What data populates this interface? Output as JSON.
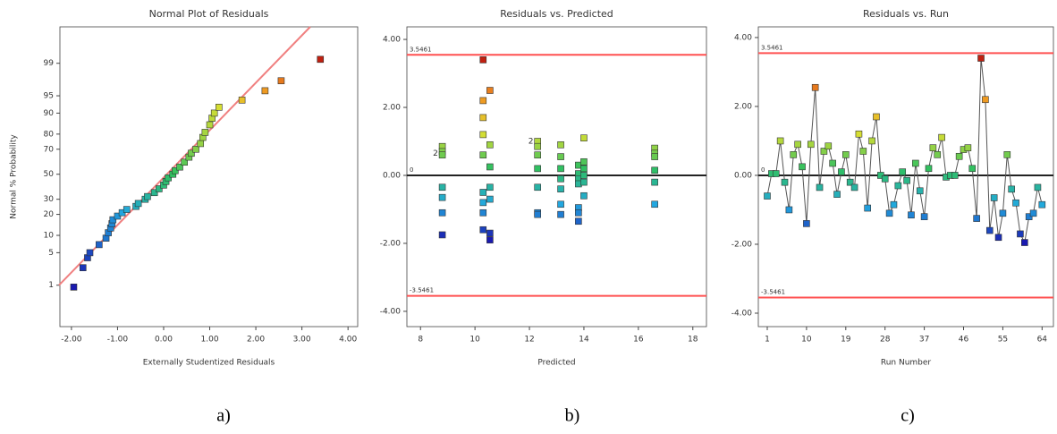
{
  "chart_data": [
    {
      "type": "scatter",
      "title": "Normal Plot of Residuals",
      "x_label": "Externally Studentized Residuals",
      "y_label": "Normal % Probability",
      "caption": "a)",
      "yscale": "probit",
      "x": [
        -1.95,
        -1.75,
        -1.65,
        -1.6,
        -1.4,
        -1.25,
        -1.2,
        -1.15,
        -1.12,
        -1.1,
        -1.0,
        -0.9,
        -0.8,
        -0.6,
        -0.55,
        -0.4,
        -0.35,
        -0.2,
        -0.1,
        0.0,
        0.05,
        0.1,
        0.2,
        0.25,
        0.35,
        0.45,
        0.55,
        0.6,
        0.7,
        0.8,
        0.85,
        0.9,
        1.0,
        1.05,
        1.1,
        1.2,
        1.7,
        2.2,
        2.55,
        3.4
      ],
      "values": [
        0.9,
        2.5,
        4,
        5,
        7,
        9,
        11,
        13,
        15,
        17,
        19,
        21,
        23,
        25,
        27,
        30,
        32,
        35,
        38,
        41,
        44,
        47,
        50,
        53,
        56,
        60,
        64,
        67,
        70,
        74,
        78,
        81,
        85,
        88,
        90,
        92,
        94,
        96,
        97.5,
        99.2
      ],
      "fit_line": {
        "x": [
          -2.27,
          3.18
        ],
        "y": [
          1,
          99.9
        ],
        "color": "#f08080"
      },
      "xlim": [
        -2.25,
        4.21
      ],
      "ylim": [
        0.07,
        99.9
      ],
      "xticks": [
        {
          "value": -2,
          "label": "-2.00"
        },
        {
          "value": -1,
          "label": "-1.00"
        },
        {
          "value": 0,
          "label": "0.00"
        },
        {
          "value": 1,
          "label": "1.00"
        },
        {
          "value": 2,
          "label": "2.00"
        },
        {
          "value": 3,
          "label": "3.00"
        },
        {
          "value": 4,
          "label": "4.00"
        }
      ],
      "yticks": [
        1,
        5,
        10,
        20,
        30,
        50,
        70,
        80,
        90,
        95,
        99
      ],
      "colormap": [
        "#1a1ab0",
        "#22a8e0",
        "#30c060",
        "#e0e030",
        "#f09020",
        "#c02010"
      ]
    },
    {
      "type": "scatter",
      "title": "Residuals vs. Predicted",
      "x_label": "Predicted",
      "caption": "b)",
      "x": [
        8.8,
        8.8,
        8.8,
        8.8,
        8.8,
        8.8,
        8.8,
        10.3,
        10.3,
        10.3,
        10.3,
        10.3,
        10.3,
        10.3,
        10.3,
        10.3,
        10.55,
        10.55,
        10.55,
        10.55,
        10.55,
        10.55,
        10.55,
        12.3,
        12.3,
        12.3,
        12.3,
        12.3,
        12.3,
        12.3,
        13.15,
        13.15,
        13.15,
        13.15,
        13.15,
        13.15,
        13.15,
        13.8,
        13.8,
        13.8,
        13.8,
        13.8,
        13.8,
        13.8,
        14.0,
        14.0,
        14.0,
        14.0,
        14.0,
        14.0,
        16.6,
        16.6,
        16.6,
        16.6,
        16.6,
        16.6
      ],
      "values": [
        0.85,
        0.7,
        0.6,
        -0.35,
        -0.65,
        -1.1,
        -1.75,
        3.4,
        2.2,
        1.7,
        1.2,
        0.6,
        -0.5,
        -0.8,
        -1.1,
        -1.6,
        2.5,
        0.9,
        0.25,
        -0.35,
        -0.7,
        -1.7,
        -1.9,
        1.0,
        0.85,
        0.6,
        0.2,
        -0.35,
        -1.1,
        -1.15,
        0.9,
        0.55,
        0.2,
        -0.1,
        -0.4,
        -0.85,
        -1.15,
        0.3,
        0.05,
        -0.1,
        -0.25,
        -0.95,
        -1.1,
        -1.35,
        1.1,
        0.4,
        0.2,
        0.0,
        -0.2,
        -0.6,
        0.8,
        0.65,
        0.55,
        0.15,
        -0.2,
        -0.85
      ],
      "annotations": [
        {
          "text": "2",
          "x": 8.55,
          "y": 0.65
        },
        {
          "text": "2",
          "x": 12.05,
          "y": 1.0
        }
      ],
      "reference_lines": [
        {
          "value": 3.5461,
          "label": "3.5461",
          "color": "#ff5050"
        },
        {
          "value": -3.5461,
          "label": "-3.5461",
          "color": "#ff5050"
        },
        {
          "value": 0,
          "label": "0",
          "color": "#222222"
        }
      ],
      "xlim": [
        7.5,
        18.5
      ],
      "ylim": [
        -4.45,
        4.37
      ],
      "xticks": [
        8,
        10,
        12,
        14,
        16,
        18
      ],
      "yticks": [
        {
          "value": 4,
          "label": "4.00"
        },
        {
          "value": 2,
          "label": "2.00"
        },
        {
          "value": 0,
          "label": "0.00"
        },
        {
          "value": -2,
          "label": "-2.00"
        },
        {
          "value": -4,
          "label": "-4.00"
        }
      ],
      "colormap": [
        "#1a1ab0",
        "#22a8e0",
        "#30c060",
        "#e0e030",
        "#f09020",
        "#c02010"
      ]
    },
    {
      "type": "line",
      "title": "Residuals vs. Run",
      "x_label": "Run Number",
      "caption": "c)",
      "x": [
        1,
        2,
        3,
        4,
        5,
        6,
        7,
        8,
        9,
        10,
        11,
        12,
        13,
        14,
        15,
        16,
        17,
        18,
        19,
        20,
        21,
        22,
        23,
        24,
        25,
        26,
        27,
        28,
        29,
        30,
        31,
        32,
        33,
        34,
        35,
        36,
        37,
        38,
        39,
        40,
        41,
        42,
        43,
        44,
        45,
        46,
        47,
        48,
        49,
        50,
        51,
        52,
        53,
        54,
        55,
        56,
        57,
        58,
        59,
        60,
        61,
        62,
        63,
        64
      ],
      "values": [
        -0.6,
        0.05,
        0.05,
        1.0,
        -0.2,
        -1.0,
        0.6,
        0.9,
        0.25,
        -1.4,
        0.9,
        2.55,
        -0.35,
        0.7,
        0.85,
        0.35,
        -0.55,
        0.1,
        0.6,
        -0.2,
        -0.35,
        1.2,
        0.7,
        -0.95,
        1.0,
        1.7,
        0.0,
        -0.1,
        -1.1,
        -0.85,
        -0.3,
        0.1,
        -0.15,
        -1.15,
        0.35,
        -0.45,
        -1.2,
        0.2,
        0.8,
        0.6,
        1.1,
        -0.05,
        0.0,
        0.0,
        0.55,
        0.75,
        0.8,
        0.2,
        -1.25,
        3.4,
        2.2,
        -1.6,
        -0.65,
        -1.8,
        -1.1,
        0.6,
        -0.4,
        -0.8,
        -1.7,
        -1.95,
        -1.2,
        -1.1,
        -0.35,
        -0.85
      ],
      "line_color": "#555555",
      "reference_lines": [
        {
          "value": 3.5461,
          "label": "3.5461",
          "color": "#ff5050"
        },
        {
          "value": -3.5461,
          "label": "-3.5461",
          "color": "#ff5050"
        },
        {
          "value": 0,
          "label": "0",
          "color": "#222222"
        }
      ],
      "xlim": [
        -1.05,
        66.6
      ],
      "ylim": [
        -4.39,
        4.31
      ],
      "xticks": [
        1,
        10,
        19,
        28,
        37,
        46,
        55,
        64
      ],
      "yticks": [
        {
          "value": 4,
          "label": "4.00"
        },
        {
          "value": 2,
          "label": "2.00"
        },
        {
          "value": 0,
          "label": "0.00"
        },
        {
          "value": -2,
          "label": "-2.00"
        },
        {
          "value": -4,
          "label": "-4.00"
        }
      ],
      "colormap": [
        "#1a1ab0",
        "#22a8e0",
        "#30c060",
        "#e0e030",
        "#f09020",
        "#c02010"
      ]
    }
  ]
}
